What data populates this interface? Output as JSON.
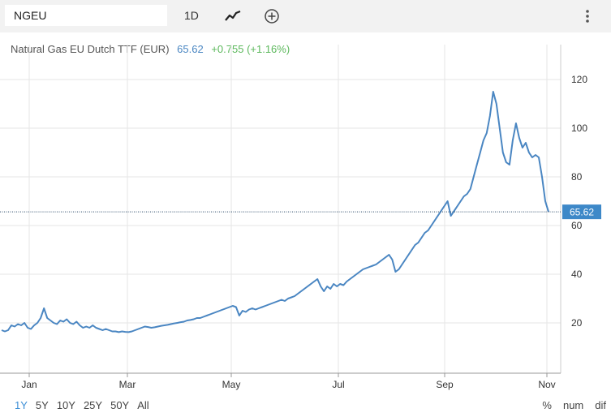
{
  "toolbar": {
    "symbol_value": "NGEU",
    "interval_label": "1D",
    "chart_type_icon": "line-chart-icon",
    "add_icon": "circle-plus-icon",
    "more_icon": "vertical-dots-icon"
  },
  "legend": {
    "name": "Natural Gas EU Dutch TTF (EUR)",
    "last": "65.62",
    "change": "+0.755 (+1.16%)"
  },
  "ranges": [
    {
      "label": "1Y",
      "active": true
    },
    {
      "label": "5Y",
      "active": false
    },
    {
      "label": "10Y",
      "active": false
    },
    {
      "label": "25Y",
      "active": false
    },
    {
      "label": "50Y",
      "active": false
    },
    {
      "label": "All",
      "active": false
    }
  ],
  "modes": [
    "%",
    "num",
    "dif"
  ],
  "colors": {
    "line": "#4a86c2",
    "last_badge": "#3d88c8",
    "change_positive": "#5cb85c",
    "grid": "#e6e6e6"
  },
  "chart_data": {
    "type": "line",
    "title": "Natural Gas EU Dutch TTF (EUR)",
    "xlabel": "",
    "ylabel": "",
    "x_tick_labels": [
      "Jan",
      "Mar",
      "May",
      "Jul",
      "Sep",
      "Nov"
    ],
    "y_tick_labels": [
      "20",
      "40",
      "60",
      "80",
      "100",
      "120"
    ],
    "ylim": [
      0,
      140
    ],
    "grid": true,
    "last_value_label": "65.62",
    "series": [
      {
        "values": [
          17,
          16.5,
          17,
          19,
          18.5,
          19.5,
          19,
          20,
          18,
          17.5,
          19,
          20,
          22,
          26,
          22,
          21,
          20,
          19.5,
          21,
          20.5,
          21.5,
          20,
          19.5,
          20.5,
          19,
          18,
          18.5,
          18,
          19,
          18,
          17.5,
          17,
          17.5,
          17,
          16.5,
          16.5,
          16.2,
          16.5,
          16.3,
          16.2,
          16.5,
          17,
          17.5,
          18,
          18.5,
          18.3,
          18,
          18.2,
          18.5,
          18.8,
          19,
          19.2,
          19.5,
          19.8,
          20,
          20.3,
          20.5,
          21,
          21.2,
          21.5,
          22,
          22,
          22.5,
          23,
          23.5,
          24,
          24.5,
          25,
          25.5,
          26,
          26.5,
          27,
          26.5,
          23,
          25,
          24.5,
          25.5,
          26,
          25.5,
          26,
          26.5,
          27,
          27.5,
          28,
          28.5,
          29,
          29.5,
          29,
          30,
          30.5,
          31,
          32,
          33,
          34,
          35,
          36,
          37,
          38,
          35,
          33,
          35,
          34,
          36,
          35,
          36,
          35.5,
          37,
          38,
          39,
          40,
          41,
          42,
          42.5,
          43,
          43.5,
          44,
          45,
          46,
          47,
          48,
          46,
          41,
          42,
          44,
          46,
          48,
          50,
          52,
          53,
          55,
          57,
          58,
          60,
          62,
          64,
          66,
          68,
          70,
          64,
          66,
          68,
          70,
          72,
          73,
          75,
          80,
          85,
          90,
          95,
          98,
          105,
          115,
          110,
          100,
          90,
          86,
          85,
          95,
          102,
          96,
          92,
          94,
          90,
          88,
          89,
          88,
          80,
          70,
          65.62
        ]
      }
    ]
  }
}
